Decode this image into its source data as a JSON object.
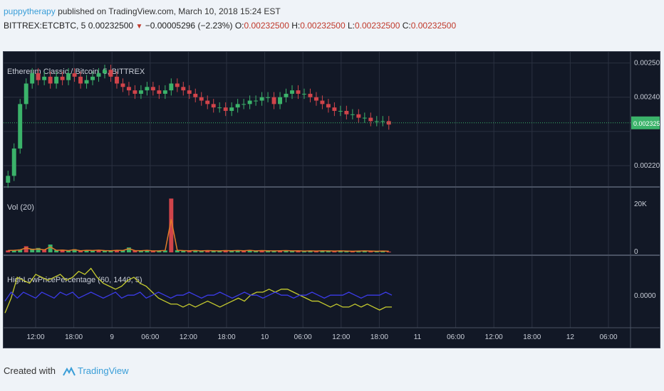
{
  "header": {
    "user": "puppytherapy",
    "published": "published on TradingView.com, March 10, 2018 15:24 EST",
    "symbol_line": "BITTREX:ETCBTC, 5",
    "last": "0.00232500",
    "change": "−0.00005296 (−2.23%)",
    "o_label": "O:",
    "o_val": "0.00232500",
    "h_label": "H:",
    "h_val": "0.00232500",
    "l_label": "L:",
    "l_val": "0.00232500",
    "c_label": "C:",
    "c_val": "0.00232500"
  },
  "footer": {
    "created_with": "Created with",
    "brand": "TradingView"
  },
  "colors": {
    "bg": "#121826",
    "grid": "#2a3140",
    "up": "#3bb36a",
    "down": "#d0444a",
    "vol_line": "#e07b2a",
    "indicator": "#c7cc2e",
    "indicator2": "#3b3be8",
    "price_badge": "#3bb36a"
  },
  "chart_data": [
    {
      "type": "candlestick",
      "title": "Ethereum Classic / Bitcoin, 5, BITTREX",
      "x_ticks": [
        "12:00",
        "18:00",
        "9",
        "06:00",
        "12:00",
        "18:00",
        "10",
        "06:00",
        "12:00",
        "18:00",
        "11",
        "06:00",
        "12:00",
        "18:00",
        "12",
        "06:00"
      ],
      "y_ticks": [
        "0.00250000",
        "0.00240000",
        "0.00220000"
      ],
      "last_price": "0.00232500",
      "ylim": [
        0.00215,
        0.00252
      ],
      "close": [
        0.00217,
        0.00225,
        0.00238,
        0.00244,
        0.00247,
        0.00245,
        0.00246,
        0.00244,
        0.00246,
        0.00245,
        0.00247,
        0.00246,
        0.00244,
        0.00245,
        0.00246,
        0.00247,
        0.00248,
        0.00246,
        0.00244,
        0.00243,
        0.00242,
        0.00241,
        0.00242,
        0.00243,
        0.00242,
        0.00241,
        0.00242,
        0.00244,
        0.00243,
        0.00242,
        0.00241,
        0.0024,
        0.00239,
        0.00238,
        0.00237,
        0.00237,
        0.00236,
        0.00237,
        0.00238,
        0.00238,
        0.00239,
        0.00239,
        0.0024,
        0.0024,
        0.00238,
        0.0024,
        0.00241,
        0.00242,
        0.00241,
        0.00241,
        0.0024,
        0.00239,
        0.00238,
        0.00237,
        0.00236,
        0.00236,
        0.00235,
        0.00235,
        0.00234,
        0.00234,
        0.00233,
        0.00233,
        0.00233,
        0.00232
      ]
    },
    {
      "type": "bar",
      "title": "Vol (20)",
      "y_ticks": [
        "20K",
        "0"
      ],
      "ylim": [
        0,
        25000
      ],
      "values": [
        800,
        900,
        1200,
        2500,
        1500,
        1800,
        1200,
        3200,
        900,
        1100,
        700,
        1300,
        600,
        900,
        800,
        1000,
        700,
        600,
        900,
        800,
        2000,
        700,
        600,
        900,
        500,
        600,
        800,
        22000,
        900,
        700,
        600,
        800,
        500,
        700,
        600,
        500,
        700,
        600,
        800,
        600,
        900,
        500,
        700,
        600,
        500,
        600,
        700,
        500,
        600,
        400,
        500,
        400,
        600,
        500,
        400,
        500,
        400,
        300,
        400,
        500,
        400,
        300,
        400,
        300
      ]
    },
    {
      "type": "line",
      "title": "HighLowPricePercentage (60, 1440, 5)",
      "y_ticks": [
        "0.0000"
      ],
      "ylim": [
        -1,
        1.2
      ],
      "series": [
        {
          "name": "",
          "values": [
            -0.6,
            -0.1,
            0.6,
            0.5,
            0.4,
            0.7,
            0.6,
            0.5,
            0.6,
            0.7,
            0.5,
            0.6,
            0.8,
            0.7,
            0.9,
            0.6,
            0.4,
            0.3,
            0.2,
            0.3,
            0.5,
            0.6,
            0.4,
            0.3,
            0.1,
            -0.1,
            -0.2,
            -0.3,
            -0.3,
            -0.4,
            -0.3,
            -0.4,
            -0.3,
            -0.2,
            -0.3,
            -0.4,
            -0.3,
            -0.2,
            -0.1,
            -0.2,
            0.0,
            0.1,
            0.1,
            0.2,
            0.1,
            0.2,
            0.2,
            0.1,
            0.0,
            -0.1,
            -0.2,
            -0.2,
            -0.3,
            -0.4,
            -0.3,
            -0.4,
            -0.4,
            -0.3,
            -0.4,
            -0.3,
            -0.4,
            -0.5,
            -0.4,
            -0.4
          ]
        },
        {
          "name": "",
          "values": [
            -0.2,
            0.1,
            -0.1,
            0.1,
            0.0,
            -0.1,
            0.1,
            0.0,
            -0.1,
            0.1,
            0.0,
            0.1,
            -0.1,
            0.0,
            0.1,
            0.0,
            -0.1,
            0.0,
            0.1,
            -0.1,
            0.0,
            0.0,
            0.1,
            -0.1,
            0.0,
            0.1,
            0.0,
            -0.1,
            0.0,
            0.0,
            0.1,
            0.0,
            -0.1,
            0.0,
            0.0,
            0.1,
            0.0,
            -0.1,
            0.0,
            0.1,
            0.0,
            0.0,
            -0.1,
            0.0,
            0.1,
            0.0,
            0.0,
            -0.1,
            0.0,
            0.0,
            0.1,
            0.0,
            -0.1,
            0.0,
            0.0,
            0.0,
            0.1,
            0.0,
            -0.1,
            0.0,
            0.0,
            0.0,
            0.1,
            0.0
          ]
        }
      ]
    }
  ]
}
